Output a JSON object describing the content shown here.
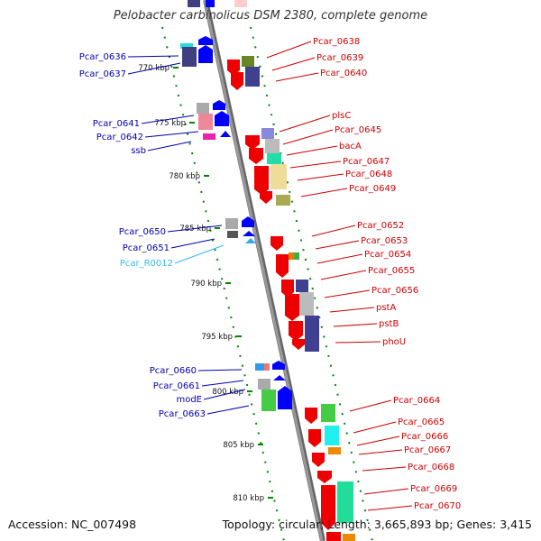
{
  "title": "Pelobacter carbinolicus DSM 2380, complete genome",
  "footer": {
    "accession": "Accession: NC_007498",
    "topology": "Topology: circular; Length: 3,665,893 bp; Genes: 3,415"
  },
  "colors": {
    "reverse_label": "#0000aa",
    "forward_label": "#cc0000",
    "rna_label": "#33bbee",
    "backbone": "#888888",
    "ruler": "#008800"
  },
  "ruler": [
    {
      "label": "770 kbp"
    },
    {
      "label": "775 kbp"
    },
    {
      "label": "780 kbp"
    },
    {
      "label": "785 kbp"
    },
    {
      "label": "790 kbp"
    },
    {
      "label": "795 kbp"
    },
    {
      "label": "800 kbp"
    },
    {
      "label": "805 kbp"
    },
    {
      "label": "810 kbp"
    }
  ],
  "reverse_labels": [
    {
      "text": "Pcar_0636"
    },
    {
      "text": "Pcar_0637"
    },
    {
      "text": "Pcar_0641"
    },
    {
      "text": "Pcar_0642"
    },
    {
      "text": "ssb"
    },
    {
      "text": "Pcar_0650"
    },
    {
      "text": "Pcar_0651"
    },
    {
      "text": "Pcar_R0012"
    },
    {
      "text": "Pcar_0660"
    },
    {
      "text": "Pcar_0661"
    },
    {
      "text": "modE"
    },
    {
      "text": "Pcar_0663"
    }
  ],
  "forward_labels": [
    {
      "text": "Pcar_0638"
    },
    {
      "text": "Pcar_0639"
    },
    {
      "text": "Pcar_0640"
    },
    {
      "text": "plsC"
    },
    {
      "text": "Pcar_0645"
    },
    {
      "text": "bacA"
    },
    {
      "text": "Pcar_0647"
    },
    {
      "text": "Pcar_0648"
    },
    {
      "text": "Pcar_0649"
    },
    {
      "text": "Pcar_0652"
    },
    {
      "text": "Pcar_0653"
    },
    {
      "text": "Pcar_0654"
    },
    {
      "text": "Pcar_0655"
    },
    {
      "text": "Pcar_0656"
    },
    {
      "text": "pstA"
    },
    {
      "text": "pstB"
    },
    {
      "text": "phoU"
    },
    {
      "text": "Pcar_0664"
    },
    {
      "text": "Pcar_0665"
    },
    {
      "text": "Pcar_0666"
    },
    {
      "text": "Pcar_0667"
    },
    {
      "text": "Pcar_0668"
    },
    {
      "text": "Pcar_0669"
    },
    {
      "text": "Pcar_0670"
    }
  ]
}
